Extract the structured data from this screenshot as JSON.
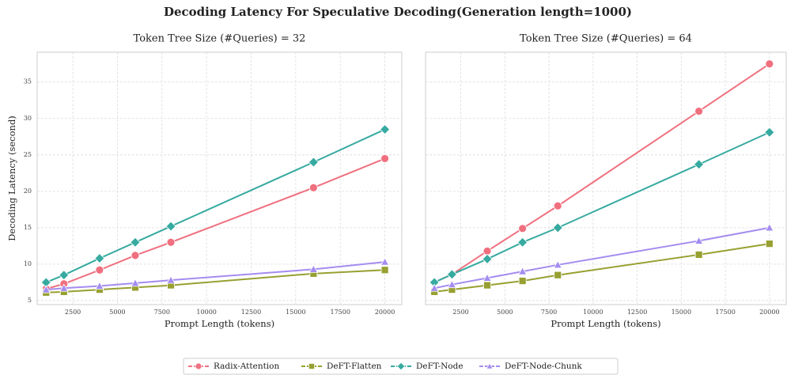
{
  "title": "Decoding Latency For Speculative Decoding(Generation length=1000)",
  "legend_position": "bottom",
  "chart_data": [
    {
      "type": "line",
      "title": "Token Tree Size (#Queries) = 32",
      "xlabel": "Prompt Length (tokens)",
      "ylabel": "Decoding Latency (second)",
      "x": [
        1000,
        2000,
        4000,
        6000,
        8000,
        16000,
        20000
      ],
      "xlim": [
        500,
        20950
      ],
      "ylim": [
        4.45,
        39.1
      ],
      "xticks": [
        2500,
        5000,
        7500,
        10000,
        12500,
        15000,
        17500,
        20000
      ],
      "yticks": [
        5,
        10,
        15,
        20,
        25,
        30,
        35
      ],
      "grid": true,
      "series": [
        {
          "name": "Radix-Attention",
          "color": "#f0707f",
          "marker": "circle",
          "values": [
            6.6,
            7.3,
            9.2,
            11.2,
            13.0,
            20.5,
            24.5
          ]
        },
        {
          "name": "DeFT-Flatten",
          "color": "#97a031",
          "marker": "square",
          "values": [
            6.1,
            6.2,
            6.5,
            6.8,
            7.1,
            8.7,
            9.2
          ]
        },
        {
          "name": "DeFT-Node",
          "color": "#36aaa0",
          "marker": "diamond",
          "values": [
            7.5,
            8.5,
            10.8,
            13.0,
            15.2,
            24.0,
            28.5
          ]
        },
        {
          "name": "DeFT-Node-Chunk",
          "color": "#a48cf0",
          "marker": "triangle",
          "values": [
            6.5,
            6.7,
            7.0,
            7.4,
            7.8,
            9.3,
            10.3
          ]
        }
      ]
    },
    {
      "type": "line",
      "title": "Token Tree Size (#Queries) = 64",
      "xlabel": "Prompt Length (tokens)",
      "x": [
        1000,
        2000,
        4000,
        6000,
        8000,
        16000,
        20000
      ],
      "xlim": [
        500,
        20950
      ],
      "ylim": [
        4.45,
        39.1
      ],
      "xticks": [
        2500,
        5000,
        7500,
        10000,
        12500,
        15000,
        17500,
        20000
      ],
      "yticks": [
        5,
        10,
        15,
        20,
        25,
        30,
        35
      ],
      "grid": true,
      "series": [
        {
          "name": "Radix-Attention",
          "color": "#f0707f",
          "marker": "circle",
          "values": [
            7.5,
            8.6,
            11.8,
            14.9,
            18.0,
            31.0,
            37.5
          ]
        },
        {
          "name": "DeFT-Flatten",
          "color": "#97a031",
          "marker": "square",
          "values": [
            6.2,
            6.5,
            7.1,
            7.7,
            8.5,
            11.3,
            12.8
          ]
        },
        {
          "name": "DeFT-Node",
          "color": "#36aaa0",
          "marker": "diamond",
          "values": [
            7.5,
            8.6,
            10.7,
            13.0,
            15.0,
            23.7,
            28.1
          ]
        },
        {
          "name": "DeFT-Node-Chunk",
          "color": "#a48cf0",
          "marker": "triangle",
          "values": [
            6.7,
            7.2,
            8.1,
            9.0,
            9.9,
            13.2,
            15.0
          ]
        }
      ]
    }
  ]
}
